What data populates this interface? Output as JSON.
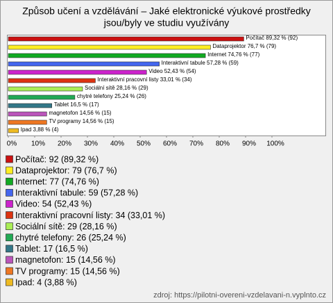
{
  "chart_data": {
    "type": "bar",
    "orientation": "horizontal",
    "title": [
      "Způsob učení a vzdělávání – Jaké elektronické výukové prostředky",
      "jsou/byly ve studiu využívány"
    ],
    "categories": [
      "Počítač",
      "Dataprojektor",
      "Internet",
      "Interaktivní tabule",
      "Video",
      "Interaktivní pracovní listy",
      "Sociální sítě",
      "chytré telefony",
      "Tablet",
      "magnetofon",
      "TV programy",
      "Ipad"
    ],
    "values": [
      89.32,
      76.7,
      74.76,
      57.28,
      52.43,
      33.01,
      28.16,
      25.24,
      16.5,
      14.56,
      14.56,
      3.88
    ],
    "value_labels": [
      "Počítač 89,32 % (92)",
      "Dataprojektor 76,7 % (79)",
      "Internet 74,76 % (77)",
      "Interaktivní tabule 57,28 % (59)",
      "Video 52,43 % (54)",
      "Interaktivní pracovní listy 33,01 % (34)",
      "Sociální sítě 28,16 % (29)",
      "chytré telefony 25,24 % (26)",
      "Tablet 16,5 % (17)",
      "magnetofon 14,56 % (15)",
      "TV programy 14,56 % (15)",
      "Ipad 3,88 % (4)"
    ],
    "colors": [
      "#cc1111",
      "#ffee22",
      "#11aa22",
      "#4466ee",
      "#cc22cc",
      "#dd3311",
      "#aaee55",
      "#22aa55",
      "#337788",
      "#bb55bb",
      "#ee7722",
      "#eebb22"
    ],
    "legend": [
      "Počítač: 92 (89,32 %)",
      "Dataprojektor: 79 (76,7 %)",
      "Internet: 77 (74,76 %)",
      "Interaktivní tabule: 59 (57,28 %)",
      "Video: 54 (52,43 %)",
      "Interaktivní pracovní listy: 34 (33,01 %)",
      "Sociální sítě: 29 (28,16 %)",
      "chytré telefony: 26 (25,24 %)",
      "Tablet: 17 (16,5 %)",
      "magnetofon: 15 (14,56 %)",
      "TV programy: 15 (14,56 %)",
      "Ipad: 4 (3,88 %)"
    ],
    "xlim": [
      0,
      100
    ],
    "xticks": [
      {
        "value": 0,
        "label": "0%"
      },
      {
        "value": 10,
        "label": "10%"
      },
      {
        "value": 20,
        "label": "20%"
      },
      {
        "value": 30,
        "label": "30%"
      },
      {
        "value": 40,
        "label": "40%"
      },
      {
        "value": 50,
        "label": "50%"
      },
      {
        "value": 60,
        "label": "60%"
      },
      {
        "value": 70,
        "label": "70%"
      },
      {
        "value": 80,
        "label": "80%"
      },
      {
        "value": 90,
        "label": "90%"
      },
      {
        "value": 100,
        "label": "100%"
      }
    ],
    "source": "zdroj: https://pilotni-overeni-vzdelavani-n.vyplnto.cz"
  }
}
